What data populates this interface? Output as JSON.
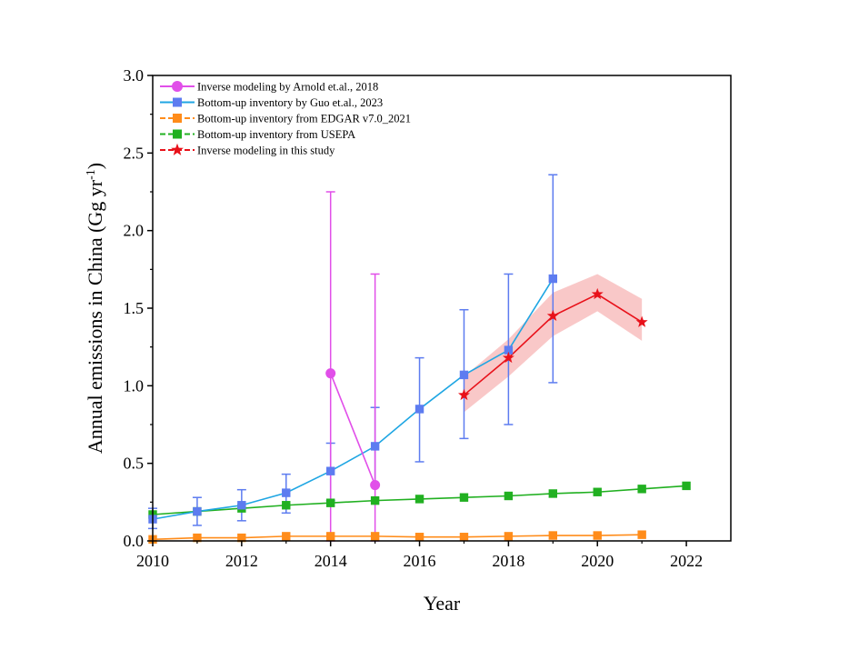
{
  "chart_data": {
    "type": "line",
    "xlabel": "Year",
    "ylabel_main": "Annual emissions in China (Gg yr",
    "ylabel_sup": "-1",
    "ylabel_close": ")",
    "xlim": [
      2010,
      2023
    ],
    "ylim": [
      0,
      3.0
    ],
    "xticks": [
      "2010",
      "2012",
      "2014",
      "2016",
      "2018",
      "2020",
      "2022"
    ],
    "yticks": [
      "0.0",
      "0.5",
      "1.0",
      "1.5",
      "2.0",
      "2.5",
      "3.0"
    ],
    "grid": false,
    "legend_position": "top-left",
    "series": [
      {
        "name": "Inverse modeling by Arnold et.al., 2018",
        "color": "#e14fe9",
        "marker": "circle",
        "points": [
          {
            "x": 2014,
            "y": 1.08,
            "lo": 0.0,
            "hi": 2.25
          },
          {
            "x": 2015,
            "y": 0.36,
            "lo": 0.0,
            "hi": 1.72
          }
        ]
      },
      {
        "name": "Bottom-up inventory by Guo et.al., 2023",
        "color": "#1fa6e3",
        "marker_color": "#5d7cf0",
        "marker": "square",
        "points": [
          {
            "x": 2010,
            "y": 0.14,
            "lo": 0.08,
            "hi": 0.21
          },
          {
            "x": 2011,
            "y": 0.19,
            "lo": 0.1,
            "hi": 0.28
          },
          {
            "x": 2012,
            "y": 0.23,
            "lo": 0.13,
            "hi": 0.33
          },
          {
            "x": 2013,
            "y": 0.31,
            "lo": 0.18,
            "hi": 0.43
          },
          {
            "x": 2014,
            "y": 0.45,
            "lo": 0.26,
            "hi": 0.63
          },
          {
            "x": 2015,
            "y": 0.61,
            "lo": 0.36,
            "hi": 0.86
          },
          {
            "x": 2016,
            "y": 0.85,
            "lo": 0.51,
            "hi": 1.18
          },
          {
            "x": 2017,
            "y": 1.07,
            "lo": 0.66,
            "hi": 1.49
          },
          {
            "x": 2018,
            "y": 1.23,
            "lo": 0.75,
            "hi": 1.72
          },
          {
            "x": 2019,
            "y": 1.69,
            "lo": 1.02,
            "hi": 2.36
          }
        ]
      },
      {
        "name": "Bottom-up inventory from EDGAR v7.0_2021",
        "color": "#ff8c1a",
        "marker": "square",
        "points": [
          {
            "x": 2010,
            "y": 0.01
          },
          {
            "x": 2011,
            "y": 0.02
          },
          {
            "x": 2012,
            "y": 0.02
          },
          {
            "x": 2013,
            "y": 0.03
          },
          {
            "x": 2014,
            "y": 0.03
          },
          {
            "x": 2015,
            "y": 0.03
          },
          {
            "x": 2016,
            "y": 0.025
          },
          {
            "x": 2017,
            "y": 0.025
          },
          {
            "x": 2018,
            "y": 0.03
          },
          {
            "x": 2019,
            "y": 0.035
          },
          {
            "x": 2020,
            "y": 0.035
          },
          {
            "x": 2021,
            "y": 0.04
          }
        ]
      },
      {
        "name": "Bottom-up inventory from USEPA",
        "color": "#21b021",
        "marker": "square",
        "points": [
          {
            "x": 2010,
            "y": 0.17
          },
          {
            "x": 2011,
            "y": 0.19
          },
          {
            "x": 2012,
            "y": 0.21
          },
          {
            "x": 2013,
            "y": 0.23
          },
          {
            "x": 2014,
            "y": 0.245
          },
          {
            "x": 2015,
            "y": 0.26
          },
          {
            "x": 2016,
            "y": 0.27
          },
          {
            "x": 2017,
            "y": 0.28
          },
          {
            "x": 2018,
            "y": 0.29
          },
          {
            "x": 2019,
            "y": 0.305
          },
          {
            "x": 2020,
            "y": 0.315
          },
          {
            "x": 2021,
            "y": 0.335
          },
          {
            "x": 2022,
            "y": 0.355
          }
        ]
      },
      {
        "name": "Inverse modeling in this study",
        "color": "#e8111a",
        "band_color": "#f7b5b5",
        "marker": "star",
        "points": [
          {
            "x": 2017,
            "y": 0.94,
            "lo": 0.83,
            "hi": 1.06
          },
          {
            "x": 2018,
            "y": 1.18,
            "lo": 1.06,
            "hi": 1.3
          },
          {
            "x": 2019,
            "y": 1.45,
            "lo": 1.32,
            "hi": 1.6
          },
          {
            "x": 2020,
            "y": 1.59,
            "lo": 1.48,
            "hi": 1.72
          },
          {
            "x": 2021,
            "y": 1.41,
            "lo": 1.29,
            "hi": 1.56
          }
        ]
      }
    ]
  }
}
